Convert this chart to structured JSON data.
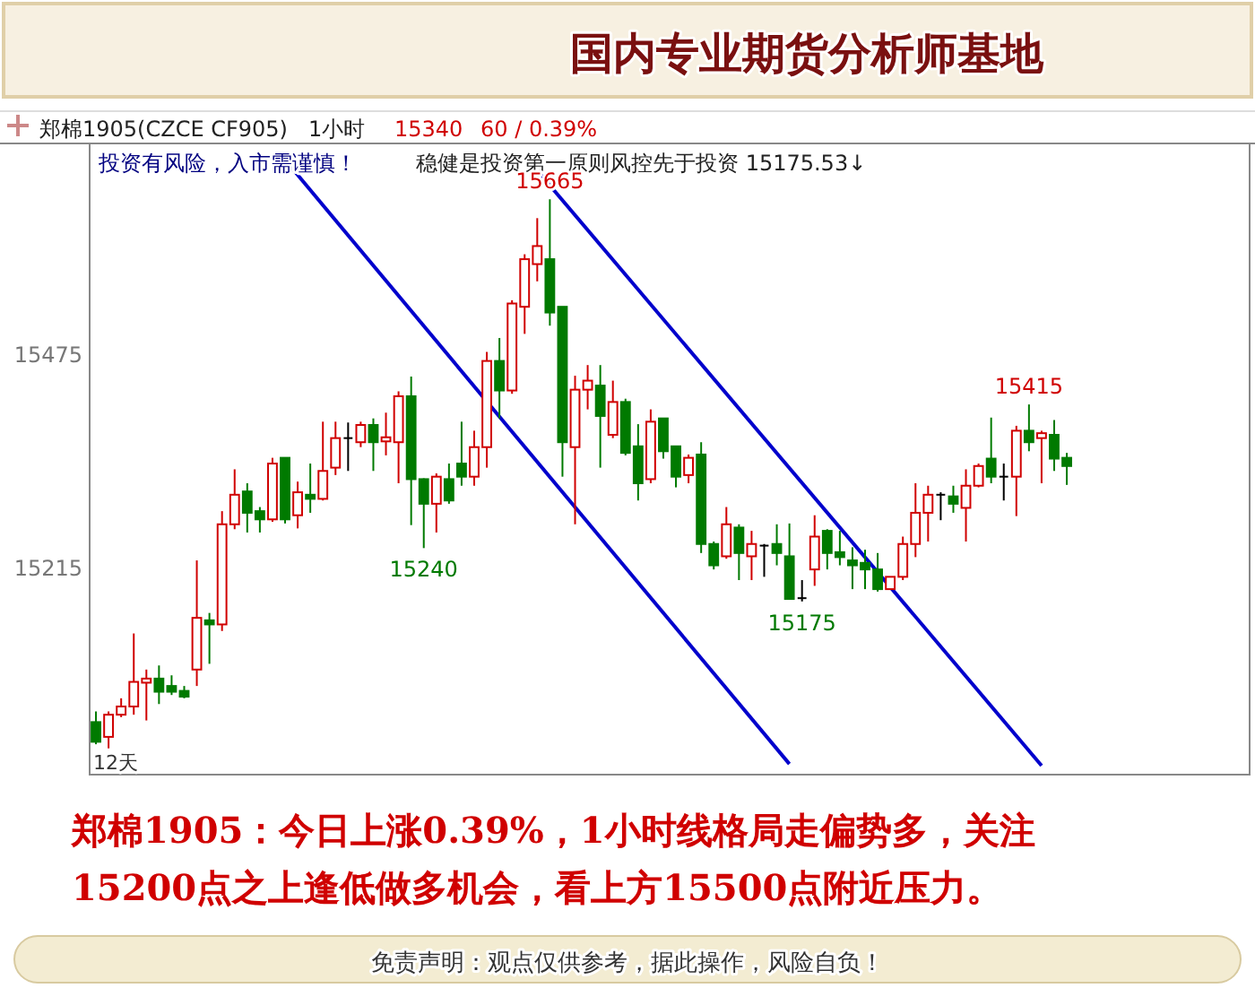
{
  "chart_data": {
    "type": "candlestick",
    "title": "国内专业期货分析师基地",
    "categories": [
      null,
      null,
      null,
      null,
      null,
      null,
      null,
      null,
      null,
      null,
      null,
      null,
      null,
      null,
      null,
      null,
      null,
      null,
      null,
      null,
      null,
      null,
      null,
      null,
      null,
      null,
      null,
      null,
      null,
      null,
      null,
      null,
      null,
      null,
      null,
      null,
      null,
      null,
      null,
      null,
      null,
      null,
      null,
      null,
      null,
      null,
      null,
      null,
      null,
      null,
      null,
      null,
      null,
      null,
      null,
      null,
      null,
      null,
      null,
      null,
      null,
      null,
      null,
      null,
      null,
      null,
      null,
      null,
      null,
      null,
      null,
      null,
      null,
      null,
      null,
      null,
      null,
      null,
      null,
      null,
      null,
      null,
      null,
      null,
      null,
      null,
      null,
      null,
      null,
      null,
      null,
      null
    ],
    "ohlc": [
      [
        15028,
        15041,
        15001,
        15004
      ],
      [
        15010,
        15041,
        14996,
        15037
      ],
      [
        15037,
        15057,
        15034,
        15047
      ],
      [
        15047,
        15136,
        15037,
        15077
      ],
      [
        15076,
        15092,
        15030,
        15081
      ],
      [
        15081,
        15097,
        15050,
        15065
      ],
      [
        15072,
        15085,
        15061,
        15065
      ],
      [
        15066,
        15072,
        15057,
        15059
      ],
      [
        15092,
        15225,
        15072,
        15155
      ],
      [
        15152,
        15161,
        15099,
        15147
      ],
      [
        15147,
        15285,
        15139,
        15269
      ],
      [
        15269,
        15336,
        15263,
        15305
      ],
      [
        15309,
        15319,
        15259,
        15283
      ],
      [
        15285,
        15290,
        15259,
        15275
      ],
      [
        15275,
        15350,
        15272,
        15343
      ],
      [
        15350,
        15350,
        15270,
        15275
      ],
      [
        15280,
        15321,
        15264,
        15308
      ],
      [
        15305,
        15343,
        15283,
        15300
      ],
      [
        15300,
        15394,
        15298,
        15334
      ],
      [
        15338,
        15394,
        15329,
        15374
      ],
      [
        15374,
        15393,
        15334,
        15374
      ],
      [
        15369,
        15394,
        15363,
        15390
      ],
      [
        15390,
        15398,
        15334,
        15369
      ],
      [
        15370,
        15405,
        15353,
        15375
      ],
      [
        15369,
        15431,
        15319,
        15425
      ],
      [
        15425,
        15449,
        15268,
        15324
      ],
      [
        15324,
        15325,
        15240,
        15294
      ],
      [
        15294,
        15331,
        15259,
        15327
      ],
      [
        15324,
        15343,
        15294,
        15298
      ],
      [
        15343,
        15394,
        15316,
        15327
      ],
      [
        15327,
        15383,
        15316,
        15363
      ],
      [
        15363,
        15479,
        15338,
        15468
      ],
      [
        15468,
        15496,
        15398,
        15432
      ],
      [
        15432,
        15542,
        15428,
        15538
      ],
      [
        15534,
        15598,
        15501,
        15592
      ],
      [
        15586,
        15642,
        15565,
        15608
      ],
      [
        15592,
        15665,
        15511,
        15527
      ],
      [
        15534,
        15534,
        15327,
        15369
      ],
      [
        15363,
        15450,
        15269,
        15433
      ],
      [
        15433,
        15463,
        15409,
        15444
      ],
      [
        15438,
        15463,
        15338,
        15401
      ],
      [
        15378,
        15444,
        15374,
        15418
      ],
      [
        15418,
        15422,
        15353,
        15356
      ],
      [
        15364,
        15391,
        15298,
        15319
      ],
      [
        15324,
        15409,
        15319,
        15394
      ],
      [
        15398,
        15398,
        15349,
        15358
      ],
      [
        15364,
        15364,
        15314,
        15327
      ],
      [
        15329,
        15354,
        15319,
        15350
      ],
      [
        15354,
        15369,
        15234,
        15245
      ],
      [
        15245,
        15248,
        15214,
        15219
      ],
      [
        15230,
        15290,
        15227,
        15269
      ],
      [
        15265,
        15269,
        15201,
        15234
      ],
      [
        15230,
        15261,
        15201,
        15245
      ],
      [
        15243,
        15245,
        15205,
        15243
      ],
      [
        15245,
        15269,
        15219,
        15234
      ],
      [
        15230,
        15270,
        15177,
        15178
      ],
      [
        15179,
        15201,
        15175,
        15179
      ],
      [
        15214,
        15280,
        15194,
        15254
      ],
      [
        15261,
        15263,
        15214,
        15234
      ],
      [
        15235,
        15261,
        15219,
        15229
      ],
      [
        15225,
        15241,
        15190,
        15219
      ],
      [
        15222,
        15238,
        15190,
        15214
      ],
      [
        15214,
        15234,
        15187,
        15190
      ],
      [
        15190,
        15205,
        15190,
        15205
      ],
      [
        15205,
        15254,
        15201,
        15245
      ],
      [
        15245,
        15319,
        15229,
        15283
      ],
      [
        15283,
        15316,
        15248,
        15305
      ],
      [
        15305,
        15308,
        15274,
        15305
      ],
      [
        15303,
        15316,
        15283,
        15294
      ],
      [
        15289,
        15336,
        15248,
        15316
      ],
      [
        15316,
        15343,
        15314,
        15340
      ],
      [
        15349,
        15399,
        15319,
        15327
      ],
      [
        15327,
        15343,
        15298,
        15327
      ],
      [
        15327,
        15389,
        15279,
        15383
      ],
      [
        15383,
        15415,
        15358,
        15369
      ],
      [
        15374,
        15383,
        15319,
        15380
      ],
      [
        15378,
        15396,
        15334,
        15349
      ],
      [
        15350,
        15356,
        15317,
        15340
      ],
      null,
      null,
      null,
      null,
      null,
      null,
      null,
      null,
      null,
      null,
      null,
      null,
      null,
      null
    ],
    "colors": [
      "#007a00",
      "#d00000",
      "#d00000",
      "#d00000",
      "#d00000",
      "#007a00",
      "#007a00",
      "#007a00",
      "#d00000",
      "#007a00",
      "#d00000",
      "#d00000",
      "#007a00",
      "#007a00",
      "#d00000",
      "#007a00",
      "#d00000",
      "#007a00",
      "#d00000",
      "#d00000",
      "#000000",
      "#d00000",
      "#007a00",
      "#d00000",
      "#d00000",
      "#007a00",
      "#007a00",
      "#d00000",
      "#007a00",
      "#007a00",
      "#d00000",
      "#d00000",
      "#007a00",
      "#d00000",
      "#d00000",
      "#d00000",
      "#007a00",
      "#007a00",
      "#d00000",
      "#d00000",
      "#007a00",
      "#d00000",
      "#007a00",
      "#007a00",
      "#d00000",
      "#007a00",
      "#007a00",
      "#d00000",
      "#007a00",
      "#007a00",
      "#d00000",
      "#007a00",
      "#d00000",
      "#000000",
      "#007a00",
      "#007a00",
      "#000000",
      "#d00000",
      "#007a00",
      "#007a00",
      "#007a00",
      "#007a00",
      "#007a00",
      "#d00000",
      "#d00000",
      "#d00000",
      "#d00000",
      "#000000",
      "#007a00",
      "#d00000",
      "#d00000",
      "#007a00",
      "#000000",
      "#d00000",
      "#007a00",
      "#d00000",
      "#007a00",
      "#007a00",
      null,
      null,
      null,
      null,
      null,
      null,
      null,
      null,
      null,
      null,
      null,
      null,
      null,
      null
    ],
    "series": [
      {
        "type": "line",
        "color": "#0000cc",
        "values": [
          null,
          null,
          null,
          null,
          null,
          null,
          null,
          null,
          null,
          null,
          null,
          null,
          null,
          null,
          null,
          15713,
          null,
          null,
          null,
          null,
          null,
          null,
          null,
          null,
          null,
          null,
          null,
          null,
          null,
          null,
          null,
          null,
          null,
          null,
          null,
          null,
          null,
          null,
          null,
          null,
          null,
          null,
          null,
          null,
          null,
          null,
          null,
          null,
          null,
          null,
          null,
          null,
          null,
          null,
          null,
          14977,
          null,
          null,
          null,
          null,
          null,
          null,
          null,
          null,
          null,
          null,
          null,
          null,
          null,
          null,
          null,
          null,
          null,
          null,
          null,
          null,
          null,
          null,
          null,
          null,
          null,
          null,
          null,
          null,
          null,
          null,
          null,
          null,
          null,
          null,
          null,
          null
        ]
      },
      {
        "type": "line",
        "color": "#0000cc",
        "values": [
          null,
          null,
          null,
          null,
          null,
          null,
          null,
          null,
          null,
          null,
          null,
          null,
          null,
          null,
          null,
          null,
          null,
          null,
          null,
          null,
          null,
          null,
          null,
          null,
          null,
          null,
          null,
          null,
          null,
          null,
          null,
          null,
          null,
          null,
          null,
          15700,
          null,
          null,
          null,
          null,
          null,
          null,
          null,
          null,
          null,
          null,
          null,
          null,
          null,
          null,
          null,
          null,
          null,
          null,
          null,
          null,
          null,
          null,
          null,
          null,
          null,
          null,
          null,
          null,
          null,
          null,
          null,
          null,
          null,
          null,
          null,
          null,
          null,
          null,
          null,
          14975,
          null,
          null,
          null,
          null,
          null,
          null,
          null,
          null,
          null,
          null,
          null,
          null,
          null,
          null,
          null,
          null
        ]
      }
    ],
    "ylim": [
      14964,
      15733
    ],
    "yticks": [
      15215,
      15475
    ],
    "tick_labels": "y",
    "annotations": [
      "郑棉1905(CZCE CF905)",
      "1小时",
      "15340",
      "60 / 0.39%",
      "投资有风险，入市需谨慎！",
      "稳健是投资第一原则风控先于投资 15175.53↓",
      "郑棉1905：今日上涨0.39%，1小时线格局走偏势多，关注",
      "15200点之上逢低做多机会，看上方15500点附近压力。",
      "免责声明：观点仅供参考，据此操作，风险自负！",
      "12天",
      {
        "text": "15665",
        "y": 15665
      },
      {
        "text": "15240",
        "y": 15240
      },
      {
        "text": "15175",
        "y": 15175
      },
      {
        "text": "15415",
        "y": 15415
      }
    ]
  }
}
